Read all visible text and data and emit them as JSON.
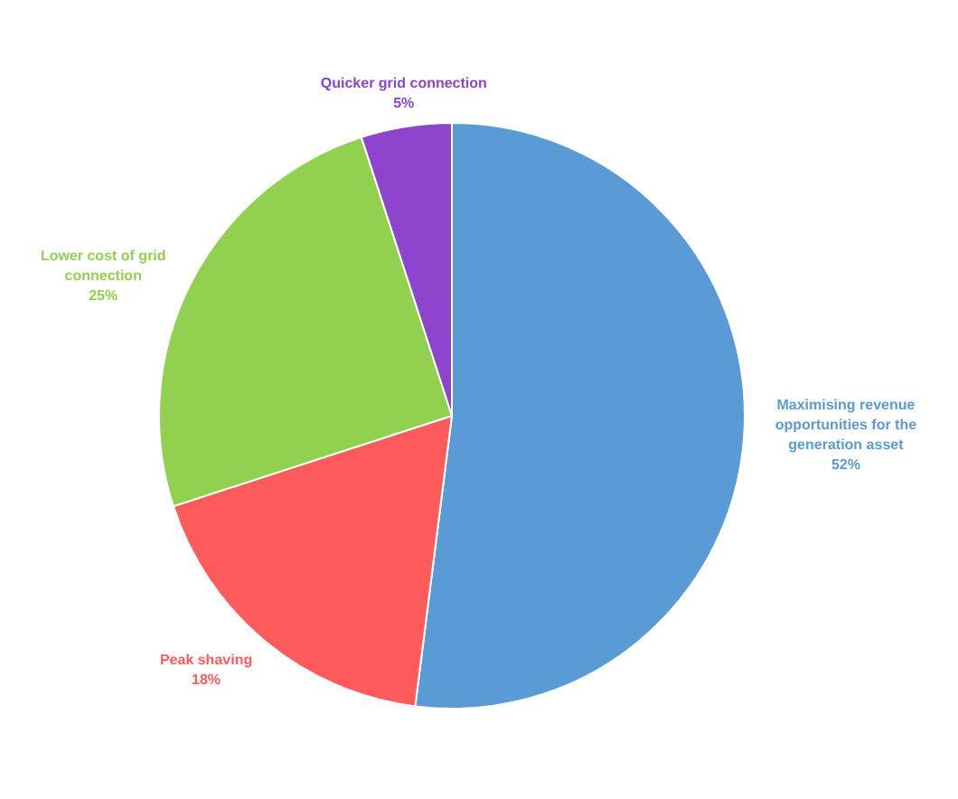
{
  "chart_data": {
    "type": "pie",
    "categories": [
      "Maximising revenue opportunities for the generation asset",
      "Peak shaving",
      "Lower cost of grid connection",
      "Quicker grid connection"
    ],
    "values": [
      52,
      18,
      25,
      5
    ],
    "value_labels": [
      "52%",
      "18%",
      "25%",
      "5%"
    ],
    "colors": [
      "#5b9bd5",
      "#ff5b5b",
      "#92d050",
      "#8e44cc"
    ],
    "legend": false
  }
}
